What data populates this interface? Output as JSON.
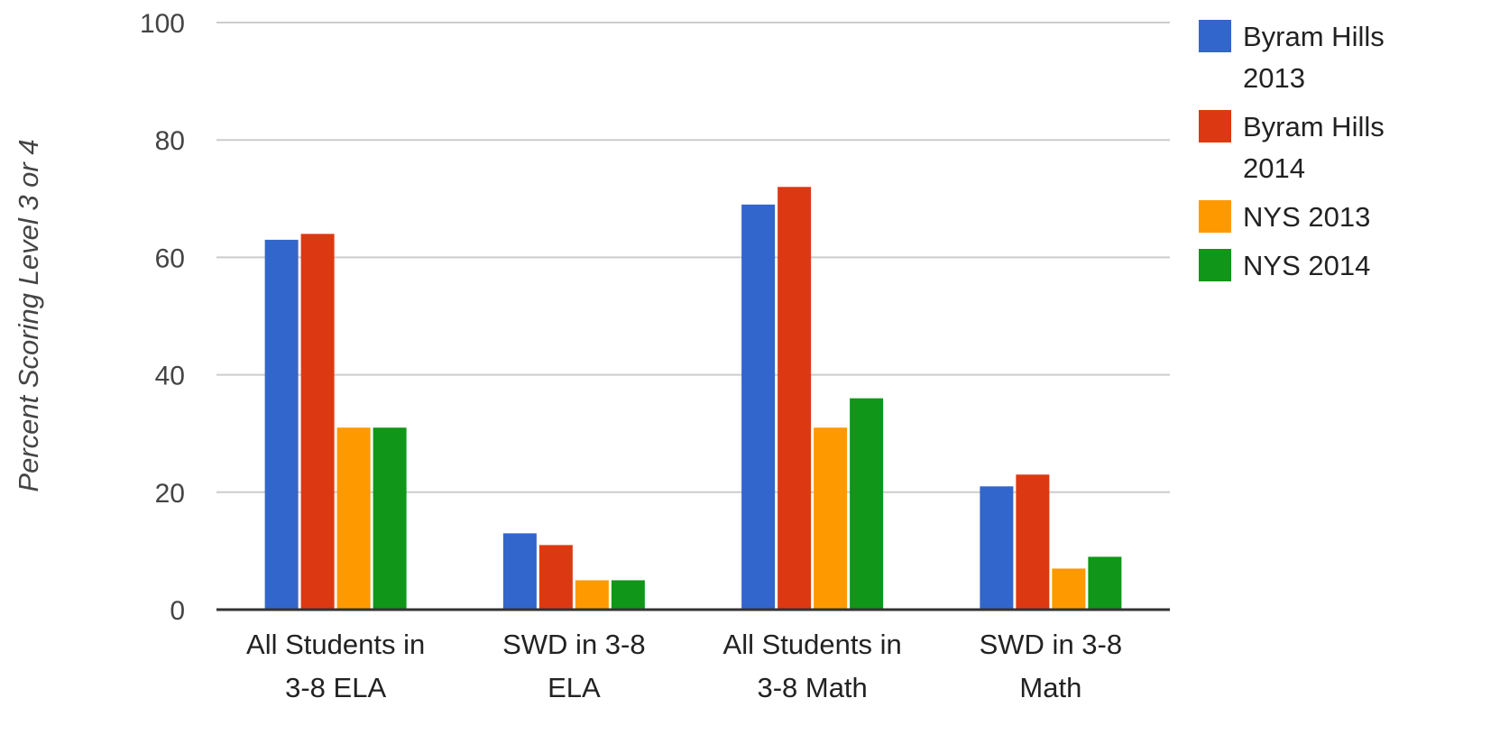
{
  "chart_data": {
    "type": "bar",
    "title": "",
    "xlabel": "",
    "ylabel": "Percent Scoring Level 3 or 4",
    "ylim": [
      0,
      100
    ],
    "yticks": [
      0,
      20,
      40,
      60,
      80,
      100
    ],
    "grid": true,
    "legend_position": "right",
    "categories": [
      [
        "All Students in",
        "3-8 ELA"
      ],
      [
        "SWD in 3-8",
        "ELA"
      ],
      [
        "All Students in",
        "3-8 Math"
      ],
      [
        "SWD in 3-8",
        "Math"
      ]
    ],
    "series": [
      {
        "name": [
          "Byram Hills",
          "2013"
        ],
        "color": "#3366cc",
        "values": [
          63,
          13,
          69,
          21
        ]
      },
      {
        "name": [
          "Byram Hills",
          "2014"
        ],
        "color": "#dc3912",
        "values": [
          64,
          11,
          72,
          23
        ]
      },
      {
        "name": [
          "NYS 2013"
        ],
        "color": "#ff9900",
        "values": [
          31,
          5,
          31,
          7
        ]
      },
      {
        "name": [
          "NYS 2014"
        ],
        "color": "#109618",
        "values": [
          31,
          5,
          36,
          9
        ]
      }
    ]
  }
}
